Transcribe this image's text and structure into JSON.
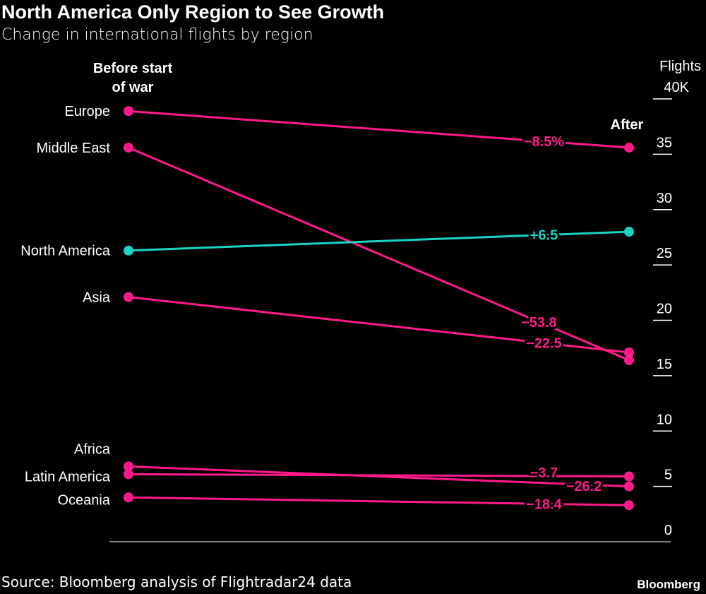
{
  "chart_data": {
    "type": "slope",
    "title": "North America Only Region to See Growth",
    "subtitle": "Change in international flights by region",
    "left_header": [
      "Before start",
      "of war"
    ],
    "right_header": "After",
    "ylabel": "Flights",
    "ylim": [
      0,
      40
    ],
    "yticks": [
      {
        "v": 40,
        "label": "40K"
      },
      {
        "v": 35,
        "label": "35"
      },
      {
        "v": 30,
        "label": "30"
      },
      {
        "v": 25,
        "label": "25"
      },
      {
        "v": 20,
        "label": "20"
      },
      {
        "v": 15,
        "label": "15"
      },
      {
        "v": 10,
        "label": "10"
      },
      {
        "v": 5,
        "label": "5"
      },
      {
        "v": 0,
        "label": "0"
      }
    ],
    "series": [
      {
        "name": "Europe",
        "before": 38.9,
        "after": 35.6,
        "change": "−8.5%",
        "color": "#ff1a8c"
      },
      {
        "name": "Middle East",
        "before": 35.6,
        "after": 16.4,
        "change": "−53.8",
        "color": "#ff1a8c"
      },
      {
        "name": "North America",
        "before": 26.3,
        "after": 28.0,
        "change": "+6.5",
        "color": "#19d3c5"
      },
      {
        "name": "Asia",
        "before": 22.1,
        "after": 17.1,
        "change": "−22.5",
        "color": "#ff1a8c"
      },
      {
        "name": "Africa",
        "before": 6.1,
        "after": 5.9,
        "change": "−3.7",
        "color": "#ff1a8c"
      },
      {
        "name": "Latin America",
        "before": 6.8,
        "after": 5.0,
        "change": "−26.2",
        "color": "#ff1a8c"
      },
      {
        "name": "Oceania",
        "before": 4.0,
        "after": 3.3,
        "change": "−18.4",
        "color": "#ff1a8c"
      }
    ],
    "source": "Source: Bloomberg analysis of Flightradar24 data"
  },
  "brand": "Bloomberg"
}
